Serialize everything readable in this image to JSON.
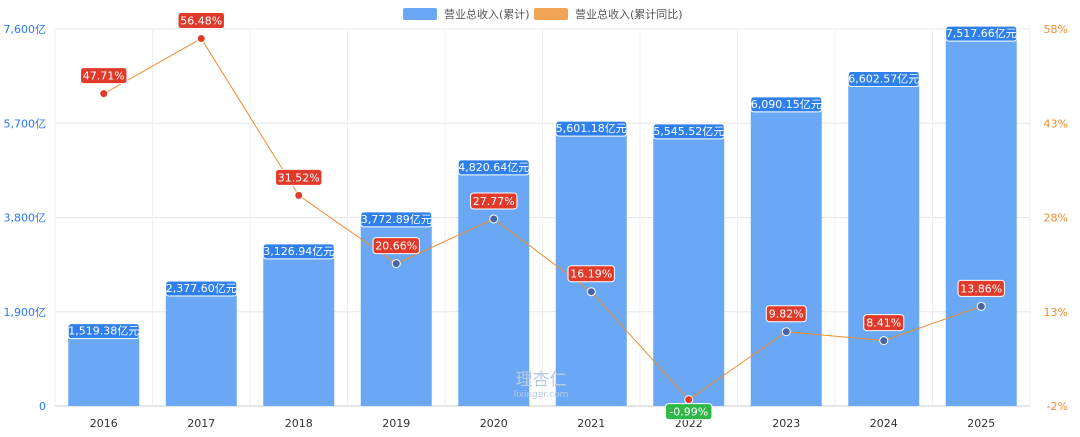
{
  "legend": {
    "series_1": "营业总收入(累计)",
    "series_2": "营业总收入(累计同比)"
  },
  "watermark": {
    "brand": "理杏仁",
    "url": "lixinger.com"
  },
  "colors": {
    "bar": "#6aa8f5",
    "bar_label_bg": "#2f80ed",
    "line": "#f08c2e",
    "point_positive": "#e13a2a",
    "point_negative": "#2d7b5c",
    "label_positive": "#e13a2a",
    "label_negative": "#2fb847",
    "grid": "#e6e6e6",
    "axis_left_text": "#2a74ff",
    "axis_right_text": "#f08c2e"
  },
  "chart_data": {
    "type": "bar",
    "categories": [
      "2016",
      "2017",
      "2018",
      "2019",
      "2020",
      "2021",
      "2022",
      "2023",
      "2024",
      "2025"
    ],
    "series": [
      {
        "name": "营业总收入(累计)",
        "axis": "left",
        "values": [
          1519.38,
          2377.6,
          3126.94,
          3772.89,
          4820.64,
          5601.18,
          5545.52,
          6090.15,
          6602.57,
          7517.66
        ],
        "labels": [
          "1,519.38亿元",
          "2,377.60亿元",
          "3,126.94亿元",
          "3,772.89亿元",
          "4,820.64亿元",
          "5,601.18亿元",
          "5,545.52亿元",
          "6,090.15亿元",
          "6,602.57亿元",
          "7,517.66亿元"
        ]
      },
      {
        "name": "营业总收入(累计同比)",
        "type": "line",
        "axis": "right",
        "values": [
          47.71,
          56.48,
          31.52,
          20.66,
          27.77,
          16.19,
          -0.99,
          9.82,
          8.41,
          13.86
        ],
        "labels": [
          "47.71%",
          "56.48%",
          "31.52%",
          "20.66%",
          "27.77%",
          "16.19%",
          "-0.99%",
          "9.82%",
          "8.41%",
          "13.86%"
        ]
      }
    ],
    "y_left": {
      "ylim": [
        0,
        7600
      ],
      "ticks": [
        "0",
        "1,900亿",
        "3,800亿",
        "5,700亿",
        "7,600亿"
      ]
    },
    "y_right": {
      "ylim": [
        -2,
        58
      ],
      "ticks": [
        "-2%",
        "13%",
        "28%",
        "43%",
        "58%"
      ]
    },
    "grid": true,
    "legend_position": "top-center"
  }
}
